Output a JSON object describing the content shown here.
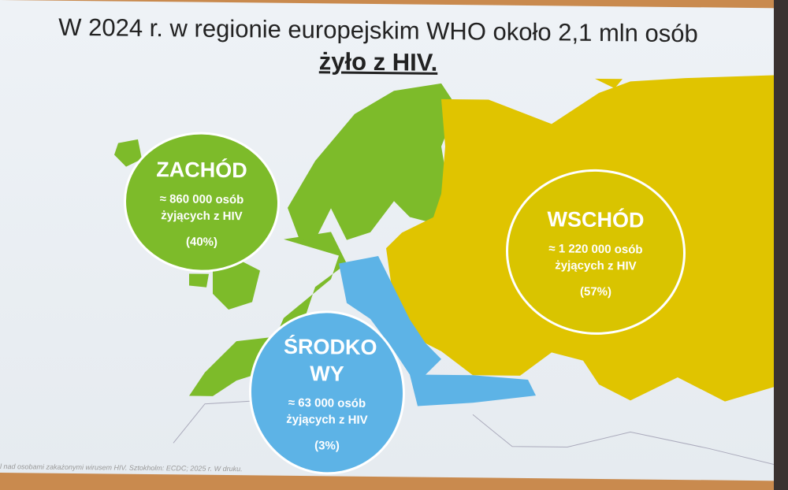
{
  "title": {
    "line1": "W 2024 r. w regionie europejskim WHO około 2,1 mln osób",
    "line2": "żyło z HIV."
  },
  "regions": [
    {
      "name": "ZACHÓD",
      "count": "≈ 860 000 osób",
      "desc": "żyjących z HIV",
      "percent": "(40%)",
      "color": "#7dbb2a"
    },
    {
      "name": "WSCHÓD",
      "count": "≈ 1 220 000 osób",
      "desc": "żyjących z HIV",
      "percent": "(57%)",
      "color": "#d9c400"
    },
    {
      "name": "ŚRODKO WY",
      "count": "≈ 63 000 osób",
      "desc": "żyjących z HIV",
      "percent": "(3%)",
      "color": "#5db3e6"
    }
  ],
  "footnote": "l nad osobami zakażonymi wirusem HIV. Sztokholm: ECDC; 2025 r. W druku."
}
